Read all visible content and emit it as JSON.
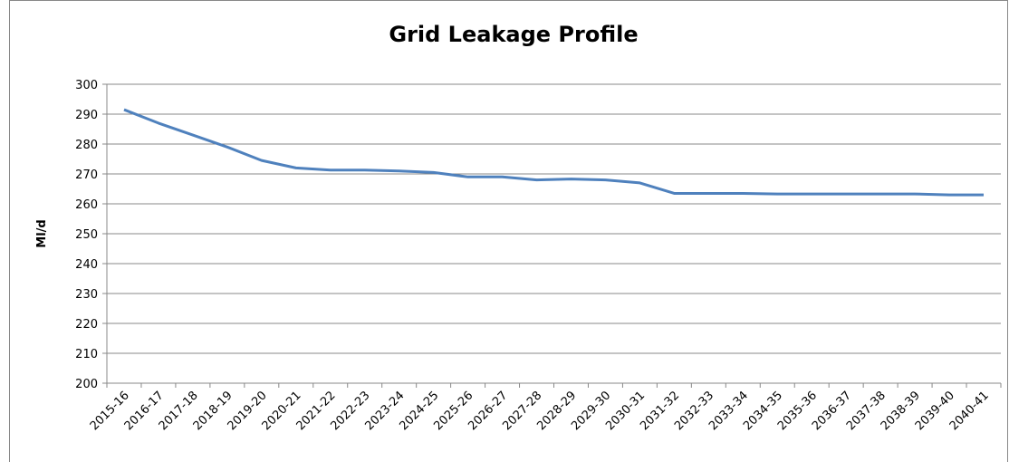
{
  "chart_data": {
    "type": "line",
    "title": "Grid Leakage Profile",
    "y_label": "Ml/d",
    "categories": [
      "2015-16",
      "2016-17",
      "2017-18",
      "2018-19",
      "2019-20",
      "2020-21",
      "2021-22",
      "2022-23",
      "2023-24",
      "2024-25",
      "2025-26",
      "2026-27",
      "2027-28",
      "2028-29",
      "2029-30",
      "2030-31",
      "2031-32",
      "2032-33",
      "2033-34",
      "2034-35",
      "2035-36",
      "2036-37",
      "2037-38",
      "2038-39",
      "2039-40",
      "2040-41"
    ],
    "series": [
      {
        "name": "Grid Leakage",
        "color": "#4f81bd",
        "values": [
          291.5,
          287,
          283,
          279,
          274.5,
          272,
          271.3,
          271.3,
          271,
          270.5,
          269,
          269,
          268,
          268.3,
          268,
          267,
          263.5,
          263.5,
          263.5,
          263.3,
          263.3,
          263.3,
          263.3,
          263.3,
          263,
          263
        ]
      }
    ],
    "ylim": [
      200,
      300
    ],
    "yticks": [
      200,
      210,
      220,
      230,
      240,
      250,
      260,
      270,
      280,
      290,
      300
    ],
    "grid": true
  }
}
